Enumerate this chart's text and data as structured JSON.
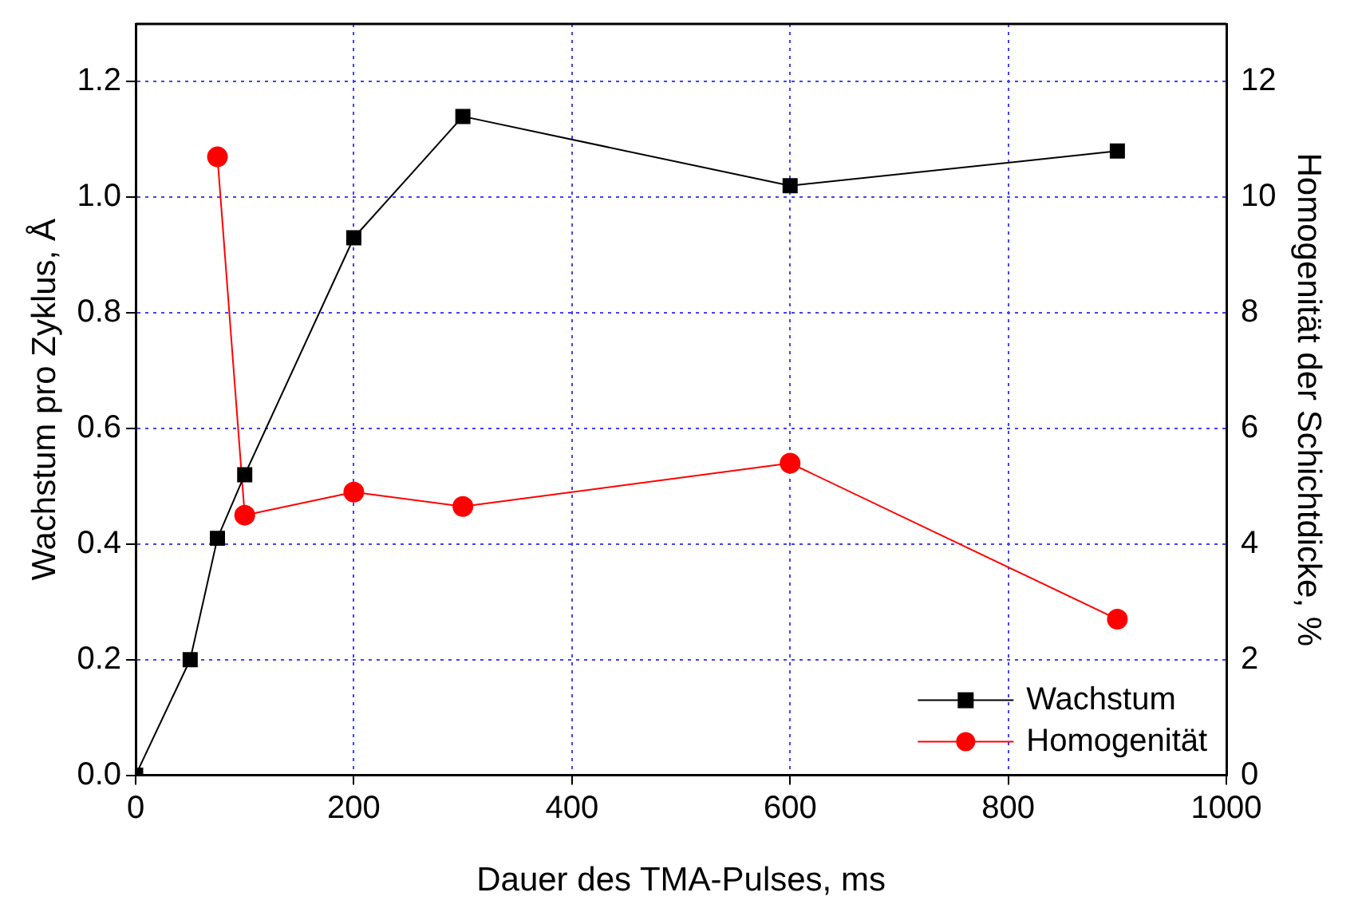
{
  "chart_data": {
    "type": "line",
    "xlabel": "Dauer des TMA-Pulses, ms",
    "ylabel": "Wachstum pro Zyklus, Å",
    "y2label": "Homogenität der Schichtdicke, %",
    "xlim": [
      0,
      1000
    ],
    "xticks": [
      0,
      200,
      400,
      600,
      800,
      1000
    ],
    "ylim": [
      0,
      1.3
    ],
    "yticks": [
      {
        "value": 0,
        "label": "0.0"
      },
      {
        "value": 0.2,
        "label": "0.2"
      },
      {
        "value": 0.4,
        "label": "0.4"
      },
      {
        "value": 0.6,
        "label": "0.6"
      },
      {
        "value": 0.8,
        "label": "0.8"
      },
      {
        "value": 1.0,
        "label": "1.0"
      },
      {
        "value": 1.2,
        "label": "1.2"
      }
    ],
    "y2lim": [
      0,
      13
    ],
    "y2ticks": [
      0,
      2,
      4,
      6,
      8,
      10,
      12
    ],
    "grid": true,
    "legend": "bottom right",
    "line_style": "solid",
    "series": [
      {
        "name": "Wachstum",
        "color": "#000000",
        "marker": "square",
        "x": [
          0,
          50,
          75,
          100,
          200,
          300,
          600,
          900
        ],
        "values": [
          0,
          0.2,
          0.41,
          0.52,
          0.93,
          1.14,
          1.02,
          1.08
        ]
      },
      {
        "name": "Homogenität",
        "color": "#ff0000",
        "marker": "circle",
        "axis": "y2",
        "x": [
          75,
          100,
          200,
          300,
          600,
          900
        ],
        "values": [
          10.7,
          4.5,
          4.9,
          4.65,
          5.4,
          2.7
        ]
      }
    ]
  }
}
